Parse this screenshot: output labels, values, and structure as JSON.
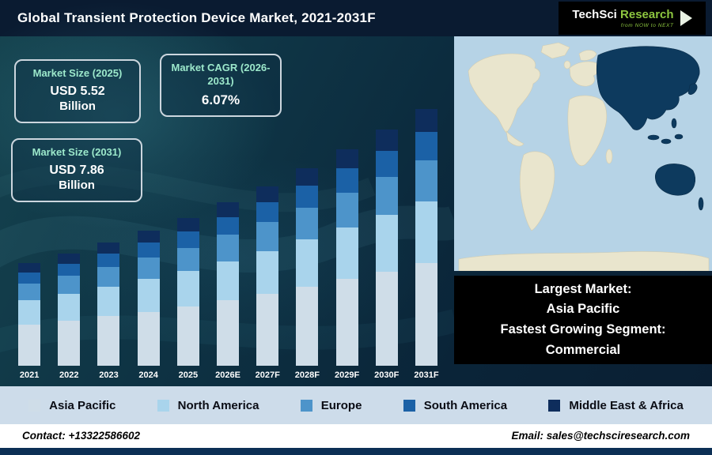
{
  "header": {
    "title": "Global Transient Protection Device Market, 2021-2031F",
    "logo": {
      "part1": "TechSci",
      "part2": "Research",
      "tagline": "from NOW to NEXT"
    }
  },
  "info_boxes": [
    {
      "title": "Market Size (2025)",
      "value": "USD 5.52",
      "unit": "Billion"
    },
    {
      "title": "Market CAGR (2026-2031)",
      "value": "6.07%",
      "unit": ""
    },
    {
      "title": "Market Size (2031)",
      "value": "USD 7.86",
      "unit": "Billion"
    }
  ],
  "chart_data": {
    "type": "bar",
    "stacked": true,
    "values_unit": "USD Billion",
    "categories": [
      "2021",
      "2022",
      "2023",
      "2024",
      "2025",
      "2026E",
      "2027F",
      "2028F",
      "2029F",
      "2030F",
      "2031F"
    ],
    "series": [
      {
        "name": "Asia Pacific",
        "color": "#cfdde8",
        "values": [
          1.82,
          1.91,
          2.0,
          2.1,
          2.21,
          2.34,
          2.48,
          2.64,
          2.8,
          2.96,
          3.14
        ]
      },
      {
        "name": "North America",
        "color": "#a9d4ec",
        "values": [
          1.09,
          1.14,
          1.2,
          1.26,
          1.32,
          1.41,
          1.49,
          1.58,
          1.68,
          1.78,
          1.89
        ]
      },
      {
        "name": "Europe",
        "color": "#4d94ca",
        "values": [
          0.73,
          0.76,
          0.8,
          0.84,
          0.88,
          0.94,
          0.99,
          1.05,
          1.12,
          1.19,
          1.26
        ]
      },
      {
        "name": "South America",
        "color": "#1b61a6",
        "values": [
          0.5,
          0.52,
          0.55,
          0.58,
          0.61,
          0.64,
          0.68,
          0.73,
          0.77,
          0.82,
          0.86
        ]
      },
      {
        "name": "Middle East & Africa",
        "color": "#0e2d5c",
        "values": [
          0.41,
          0.43,
          0.45,
          0.47,
          0.5,
          0.53,
          0.56,
          0.59,
          0.63,
          0.67,
          0.71
        ]
      }
    ],
    "totals": [
      4.55,
      4.76,
      5.0,
      5.25,
      5.52,
      5.86,
      6.2,
      6.59,
      7.0,
      7.42,
      7.86
    ]
  },
  "map": {
    "highlighted_region": "Asia Pacific"
  },
  "highlight_panel": {
    "line1": "Largest Market:",
    "line2": "Asia Pacific",
    "line3": "Fastest Growing Segment:",
    "line4": "Commercial"
  },
  "footer": {
    "contact": "Contact: +13322586602",
    "email": "Email: sales@techsciresearch.com"
  },
  "colors": {
    "header_bg": "#0a1b31",
    "legend_bg": "#cddcea",
    "info_title": "#9ce8cb",
    "map_highlight": "#0d3a5e",
    "map_land": "#e9e5cd",
    "map_sea": "#b6d3e6"
  }
}
